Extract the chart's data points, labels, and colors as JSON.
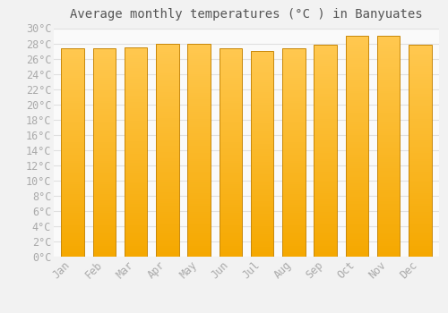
{
  "title": "Average monthly temperatures (°C ) in Banyuates",
  "months": [
    "Jan",
    "Feb",
    "Mar",
    "Apr",
    "May",
    "Jun",
    "Jul",
    "Aug",
    "Sep",
    "Oct",
    "Nov",
    "Dec"
  ],
  "values": [
    27.3,
    27.3,
    27.5,
    28.0,
    27.9,
    27.3,
    27.0,
    27.3,
    27.8,
    29.0,
    29.0,
    27.8
  ],
  "bar_color_top": "#FFC04C",
  "bar_color_bottom": "#F5A800",
  "bar_edge_color": "#C8880A",
  "background_color": "#F2F2F2",
  "plot_bg_color": "#FAFAFA",
  "grid_color": "#E0E0E0",
  "tick_label_color": "#AAAAAA",
  "title_color": "#555555",
  "ylim": [
    0,
    30
  ],
  "ytick_step": 2,
  "title_fontsize": 10,
  "tick_fontsize": 8.5
}
